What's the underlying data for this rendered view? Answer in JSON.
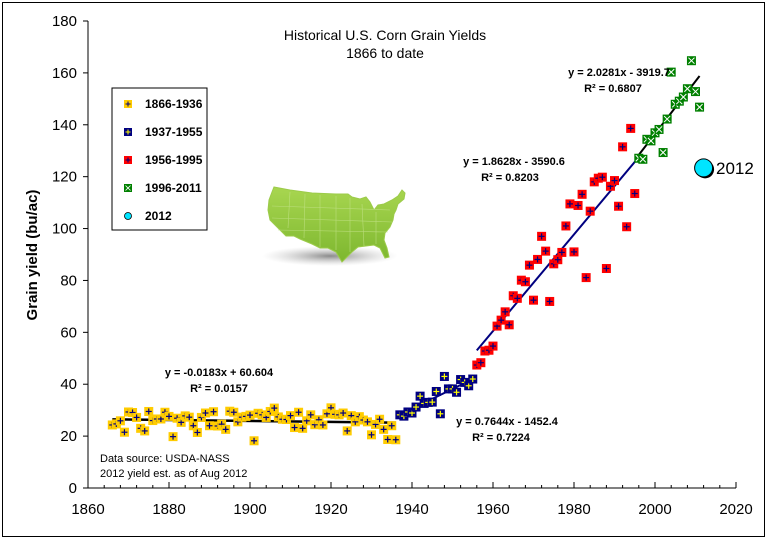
{
  "chart_data": {
    "type": "scatter",
    "title": "Historical U.S. Corn Grain Yields",
    "subtitle": "1866 to date",
    "xlabel": "",
    "ylabel": "Grain yield (bu/ac)",
    "xlim": [
      1860,
      2020
    ],
    "ylim": [
      0,
      180
    ],
    "x_ticks": [
      "1860",
      "1880",
      "1900",
      "1920",
      "1940",
      "1960",
      "1980",
      "2000",
      "2020"
    ],
    "y_ticks": [
      "0",
      "20",
      "40",
      "60",
      "80",
      "100",
      "120",
      "140",
      "160",
      "180"
    ],
    "grid": false,
    "legend_position": "top-left",
    "series": [
      {
        "name": "1866-1936",
        "color": "#FFCC00",
        "marker": "plus",
        "x": [
          1866,
          1867,
          1868,
          1869,
          1870,
          1871,
          1872,
          1873,
          1874,
          1875,
          1876,
          1877,
          1878,
          1879,
          1880,
          1881,
          1882,
          1883,
          1884,
          1885,
          1886,
          1887,
          1888,
          1889,
          1890,
          1891,
          1892,
          1893,
          1894,
          1895,
          1896,
          1897,
          1898,
          1899,
          1900,
          1901,
          1902,
          1903,
          1904,
          1905,
          1906,
          1907,
          1908,
          1909,
          1910,
          1911,
          1912,
          1913,
          1914,
          1915,
          1916,
          1917,
          1918,
          1919,
          1920,
          1921,
          1922,
          1923,
          1924,
          1925,
          1926,
          1927,
          1928,
          1929,
          1930,
          1931,
          1932,
          1933,
          1934,
          1935,
          1936
        ],
        "y": [
          24.3,
          24.7,
          25.9,
          21.5,
          29.3,
          29.1,
          27.2,
          23.0,
          22.0,
          29.5,
          26.0,
          26.6,
          26.6,
          29.2,
          27.6,
          19.8,
          26.9,
          25.3,
          27.8,
          27.3,
          24.0,
          21.4,
          27.2,
          28.9,
          24.0,
          29.4,
          23.9,
          24.6,
          22.6,
          29.6,
          29.2,
          25.5,
          27.3,
          27.6,
          28.1,
          18.2,
          28.8,
          28.2,
          27.2,
          29.5,
          30.8,
          27.4,
          26.5,
          26.4,
          27.9,
          23.3,
          29.2,
          23.0,
          25.9,
          28.2,
          24.4,
          26.3,
          24.3,
          28.6,
          30.9,
          28.4,
          28.2,
          28.9,
          22.0,
          27.9,
          25.5,
          27.5,
          26.2,
          25.5,
          20.5,
          24.5,
          26.5,
          22.6,
          18.7,
          24.0,
          18.6
        ]
      },
      {
        "name": "1937-1955",
        "color": "#000080",
        "marker": "plus",
        "x": [
          1937,
          1938,
          1939,
          1940,
          1941,
          1942,
          1943,
          1944,
          1945,
          1946,
          1947,
          1948,
          1949,
          1950,
          1951,
          1952,
          1953,
          1954,
          1955
        ],
        "y": [
          28.2,
          27.7,
          29.3,
          28.9,
          31.2,
          35.4,
          32.6,
          33.0,
          33.1,
          37.2,
          28.6,
          43.0,
          38.2,
          38.2,
          36.9,
          41.8,
          40.7,
          39.4,
          42.0
        ]
      },
      {
        "name": "1956-1995",
        "color": "#FF0000",
        "marker": "plus",
        "x": [
          1956,
          1957,
          1958,
          1959,
          1960,
          1961,
          1962,
          1963,
          1964,
          1965,
          1966,
          1967,
          1968,
          1969,
          1970,
          1971,
          1972,
          1973,
          1974,
          1975,
          1976,
          1977,
          1978,
          1979,
          1980,
          1981,
          1982,
          1983,
          1984,
          1985,
          1986,
          1987,
          1988,
          1989,
          1990,
          1991,
          1992,
          1993,
          1994,
          1995
        ],
        "y": [
          47.4,
          48.3,
          52.8,
          53.1,
          54.7,
          62.4,
          64.7,
          67.9,
          62.9,
          74.1,
          73.1,
          80.1,
          79.5,
          85.9,
          72.4,
          88.1,
          97.0,
          91.3,
          71.9,
          86.4,
          88.0,
          90.8,
          101.0,
          109.5,
          91.0,
          108.9,
          113.2,
          81.1,
          106.7,
          118.0,
          119.4,
          119.8,
          84.6,
          116.3,
          118.5,
          108.6,
          131.5,
          100.7,
          138.6,
          113.5
        ]
      },
      {
        "name": "1996-2011",
        "color": "#008000",
        "marker": "x",
        "x": [
          1996,
          1997,
          1998,
          1999,
          2000,
          2001,
          2002,
          2003,
          2004,
          2005,
          2006,
          2007,
          2008,
          2009,
          2010,
          2011
        ],
        "y": [
          127.1,
          126.7,
          134.4,
          133.8,
          136.9,
          138.2,
          129.3,
          142.2,
          160.3,
          147.9,
          149.1,
          150.7,
          153.9,
          164.7,
          152.8,
          146.8
        ]
      },
      {
        "name": "2012",
        "color": "#00E5FF",
        "marker": "circle",
        "x": [
          2012
        ],
        "y": [
          123.4
        ]
      }
    ],
    "trendlines": [
      {
        "series": "1866-1936",
        "equation": "y = -0.0183x + 60.604",
        "r2": "R² = 0.0157",
        "slope": -0.0183,
        "intercept": 60.604,
        "x_range": [
          1866,
          1936
        ],
        "color": "#000000"
      },
      {
        "series": "1937-1955",
        "equation": "y = 0.7644x - 1452.4",
        "r2": "R² = 0.7224",
        "slope": 0.7644,
        "intercept": -1452.4,
        "x_range": [
          1937,
          1955
        ],
        "color": "#000080"
      },
      {
        "series": "1956-1995",
        "equation": "y = 1.8628x - 3590.6",
        "r2": "R² = 0.8203",
        "slope": 1.8628,
        "intercept": -3590.6,
        "x_range": [
          1956,
          1996
        ],
        "color": "#000080"
      },
      {
        "series": "1996-2011",
        "equation": "y = 2.0281x - 3919.7",
        "r2": "R² = 0.6807",
        "slope": 2.0281,
        "intercept": -3919.7,
        "x_range": [
          1996,
          2011
        ],
        "color": "#000000"
      }
    ],
    "annotations": {
      "point_label_2012": "2012",
      "source_line_1": "Data source: USDA-NASS",
      "source_line_2": "2012 yield est. as of Aug 2012"
    }
  },
  "colors": {
    "map_fill": "#8DC63F",
    "map_stroke": "#B5DA74",
    "map_shadow": "#9A9A9A"
  }
}
